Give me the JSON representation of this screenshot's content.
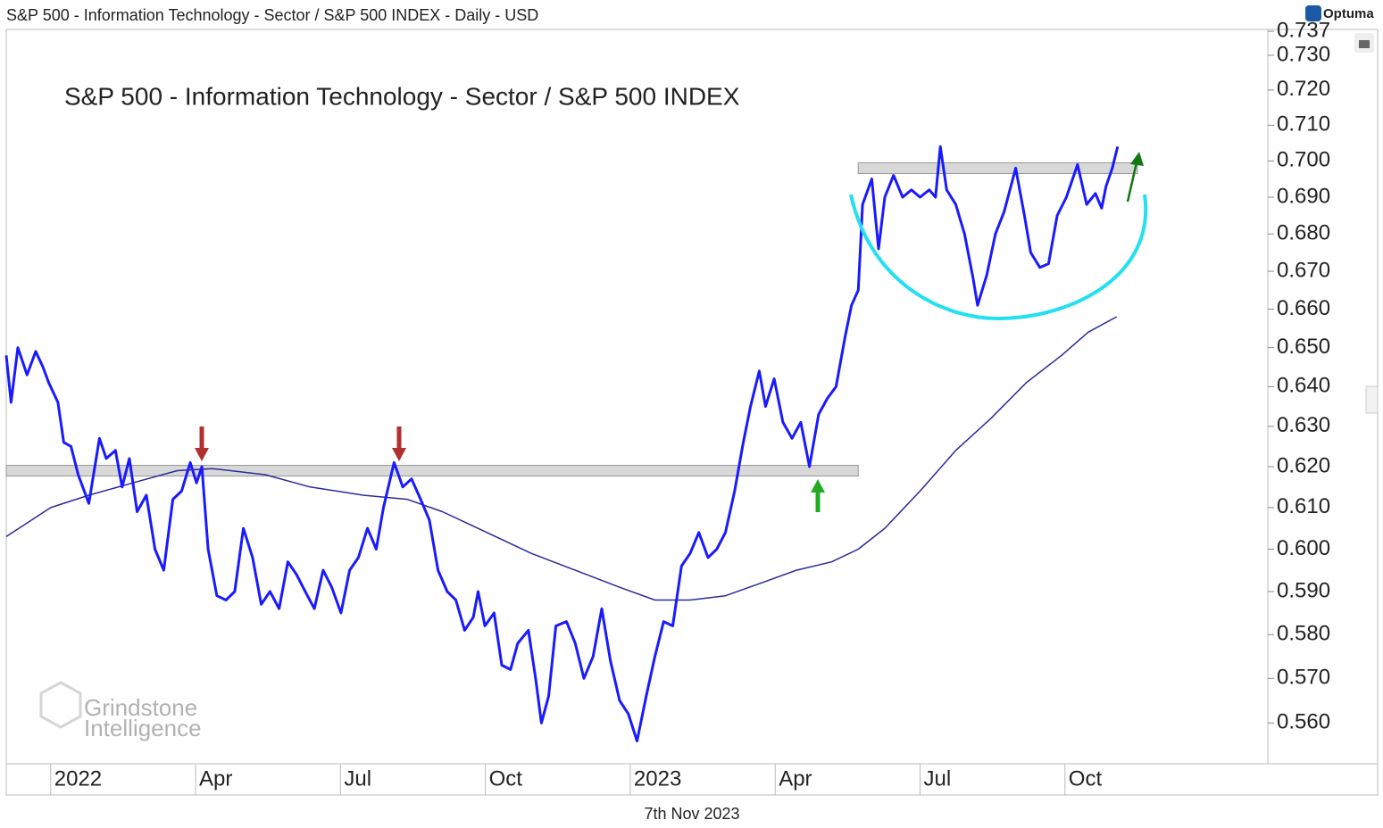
{
  "header": "S&P 500 - Information Technology - Sector / S&P 500 INDEX - Daily - USD",
  "logo": "Optuma",
  "watermark": [
    "Grindstone",
    "Intelligence"
  ],
  "footer": "7th Nov 2023",
  "chart_data": {
    "type": "line",
    "title": "S&P 500 - Information Technology - Sector / S&P 500 INDEX",
    "log_scale": true,
    "xlim": [
      -0.92,
      25.2
    ],
    "xticks": [
      {
        "value": 0,
        "label": "2022"
      },
      {
        "value": 3,
        "label": "Apr"
      },
      {
        "value": 6,
        "label": "Jul"
      },
      {
        "value": 9,
        "label": "Oct"
      },
      {
        "value": 12,
        "label": "2023"
      },
      {
        "value": 15,
        "label": "Apr"
      },
      {
        "value": 18,
        "label": "Jul"
      },
      {
        "value": 21,
        "label": "Oct"
      }
    ],
    "ylim": [
      0.551,
      0.737
    ],
    "yticks": [
      {
        "value": 0.56,
        "label": "0.560"
      },
      {
        "value": 0.57,
        "label": "0.570"
      },
      {
        "value": 0.58,
        "label": "0.580"
      },
      {
        "value": 0.59,
        "label": "0.590"
      },
      {
        "value": 0.6,
        "label": "0.600"
      },
      {
        "value": 0.61,
        "label": "0.610"
      },
      {
        "value": 0.62,
        "label": "0.620"
      },
      {
        "value": 0.63,
        "label": "0.630"
      },
      {
        "value": 0.64,
        "label": "0.640"
      },
      {
        "value": 0.65,
        "label": "0.650"
      },
      {
        "value": 0.66,
        "label": "0.660"
      },
      {
        "value": 0.67,
        "label": "0.670"
      },
      {
        "value": 0.68,
        "label": "0.680"
      },
      {
        "value": 0.69,
        "label": "0.690"
      },
      {
        "value": 0.7,
        "label": "0.700"
      },
      {
        "value": 0.71,
        "label": "0.710"
      },
      {
        "value": 0.72,
        "label": "0.720"
      },
      {
        "value": 0.73,
        "label": "0.730"
      },
      0.737
    ],
    "bands": [
      {
        "x": [
          -0.92,
          16.72
        ],
        "y": 0.619
      },
      {
        "x": [
          16.72,
          22.5
        ],
        "y": 0.698
      }
    ],
    "series": [
      {
        "color": "#1a1aff",
        "width": 3,
        "x": [
          -0.92,
          -0.82,
          -0.68,
          -0.49,
          -0.31,
          -0.16,
          -0.04,
          0.15,
          0.27,
          0.42,
          0.57,
          0.79,
          1.01,
          1.15,
          1.34,
          1.48,
          1.63,
          1.79,
          1.98,
          2.16,
          2.34,
          2.53,
          2.71,
          2.89,
          3.02,
          3.13,
          3.26,
          3.44,
          3.63,
          3.81,
          3.99,
          4.18,
          4.36,
          4.54,
          4.73,
          4.91,
          5.09,
          5.27,
          5.46,
          5.64,
          5.82,
          6.01,
          6.19,
          6.37,
          6.56,
          6.74,
          6.89,
          7.11,
          7.29,
          7.47,
          7.66,
          7.84,
          8.02,
          8.21,
          8.39,
          8.57,
          8.75,
          8.85,
          8.99,
          9.18,
          9.34,
          9.52,
          9.67,
          9.89,
          10.04,
          10.16,
          10.31,
          10.46,
          10.68,
          10.86,
          11.04,
          11.23,
          11.41,
          11.59,
          11.78,
          11.96,
          12.14,
          12.33,
          12.51,
          12.69,
          12.88,
          13.06,
          13.24,
          13.42,
          13.61,
          13.79,
          13.97,
          14.16,
          14.34,
          14.49,
          14.67,
          14.8,
          14.98,
          15.16,
          15.35,
          15.53,
          15.71,
          15.9,
          16.08,
          16.26,
          16.45,
          16.58,
          16.72,
          16.81,
          17.0,
          17.14,
          17.27,
          17.45,
          17.64,
          17.82,
          18.0,
          18.19,
          18.32,
          18.42,
          18.55,
          18.74,
          18.92,
          19.1,
          19.19,
          19.38,
          19.56,
          19.74,
          19.98,
          20.16,
          20.29,
          20.48,
          20.66,
          20.84,
          21.03,
          21.26,
          21.45,
          21.63,
          21.76,
          21.85,
          21.98,
          22.09
        ],
        "values": [
          0.648,
          0.636,
          0.65,
          0.643,
          0.649,
          0.645,
          0.641,
          0.636,
          0.626,
          0.625,
          0.618,
          0.611,
          0.627,
          0.622,
          0.624,
          0.615,
          0.622,
          0.609,
          0.613,
          0.6,
          0.595,
          0.612,
          0.614,
          0.621,
          0.616,
          0.62,
          0.6,
          0.589,
          0.588,
          0.59,
          0.605,
          0.598,
          0.587,
          0.59,
          0.586,
          0.597,
          0.594,
          0.59,
          0.586,
          0.595,
          0.591,
          0.585,
          0.595,
          0.598,
          0.605,
          0.6,
          0.61,
          0.621,
          0.615,
          0.617,
          0.612,
          0.607,
          0.595,
          0.59,
          0.588,
          0.581,
          0.584,
          0.59,
          0.582,
          0.585,
          0.573,
          0.572,
          0.578,
          0.581,
          0.57,
          0.56,
          0.566,
          0.582,
          0.583,
          0.578,
          0.57,
          0.575,
          0.586,
          0.574,
          0.565,
          0.562,
          0.556,
          0.566,
          0.575,
          0.583,
          0.582,
          0.596,
          0.599,
          0.604,
          0.598,
          0.6,
          0.604,
          0.614,
          0.626,
          0.635,
          0.644,
          0.635,
          0.642,
          0.631,
          0.627,
          0.631,
          0.62,
          0.633,
          0.637,
          0.64,
          0.653,
          0.661,
          0.665,
          0.688,
          0.695,
          0.676,
          0.69,
          0.696,
          0.69,
          0.692,
          0.69,
          0.692,
          0.69,
          0.704,
          0.692,
          0.688,
          0.68,
          0.668,
          0.661,
          0.669,
          0.68,
          0.686,
          0.698,
          0.685,
          0.675,
          0.671,
          0.672,
          0.685,
          0.69,
          0.699,
          0.688,
          0.691,
          0.687,
          0.693,
          0.698,
          0.704
        ]
      },
      {
        "color": "#2a2a9a",
        "width": 1.5,
        "x": [
          -0.92,
          0,
          0.79,
          1.7,
          2.62,
          3.35,
          4.45,
          5.37,
          6.47,
          7.38,
          8.11,
          9.03,
          9.95,
          10.86,
          11.78,
          12.51,
          13.24,
          13.97,
          14.71,
          15.44,
          16.17,
          16.72,
          17.27,
          18.0,
          18.74,
          19.47,
          20.2,
          20.93,
          21.48,
          22.07
        ],
        "values": [
          0.603,
          0.61,
          0.613,
          0.616,
          0.619,
          0.6195,
          0.618,
          0.615,
          0.613,
          0.612,
          0.609,
          0.604,
          0.599,
          0.595,
          0.591,
          0.588,
          0.588,
          0.589,
          0.592,
          0.595,
          0.597,
          0.6,
          0.605,
          0.614,
          0.624,
          0.632,
          0.641,
          0.648,
          0.654,
          0.658
        ]
      }
    ]
  }
}
